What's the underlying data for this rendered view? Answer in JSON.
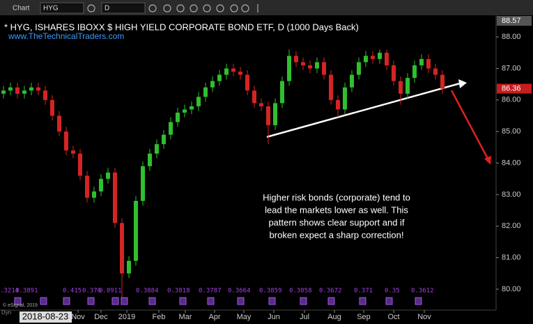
{
  "toolbar": {
    "label": "Chart",
    "symbol": "HYG",
    "interval": "D"
  },
  "chart_data": {
    "type": "candlestick",
    "title": "* HYG, ISHARES IBOXX $ HIGH YIELD CORPORATE BOND ETF, D (1000 Days Back)",
    "subtitle": "www.TheTechnicalTraders.com",
    "annotation": [
      "Higher risk bonds (corporate) tend to",
      "lead the markets lower as well. This",
      "pattern shows clear support and if",
      "broken expect a sharp correction!"
    ],
    "up_color": "#2fbf2f",
    "down_color": "#d42424",
    "candles": {
      "open": [
        86.2,
        86.3,
        86.4,
        86.2,
        86.3,
        86.4,
        86.3,
        86.0,
        85.5,
        85.0,
        84.4,
        84.3,
        83.6,
        82.9,
        83.1,
        83.5,
        83.7,
        82.1,
        80.5,
        80.9,
        82.8,
        83.9,
        84.3,
        84.6,
        84.9,
        85.3,
        85.6,
        85.7,
        85.8,
        86.1,
        86.4,
        86.6,
        86.8,
        87.0,
        86.9,
        86.8,
        86.3,
        85.9,
        85.8,
        85.2,
        85.9,
        86.6,
        87.4,
        87.2,
        87.1,
        87.0,
        87.2,
        86.8,
        86.0,
        85.7,
        86.4,
        86.8,
        87.2,
        87.4,
        87.3,
        87.5,
        87.1,
        86.6,
        86.2,
        86.7,
        87.1,
        87.3,
        87.0,
        86.8
      ],
      "high": [
        86.45,
        86.55,
        86.55,
        86.45,
        86.55,
        86.55,
        86.45,
        86.15,
        85.65,
        85.15,
        84.55,
        84.45,
        83.75,
        83.25,
        83.65,
        83.85,
        83.85,
        82.25,
        81.05,
        82.95,
        84.05,
        84.45,
        84.75,
        85.05,
        85.45,
        85.75,
        85.85,
        85.95,
        86.25,
        86.55,
        86.75,
        86.95,
        87.15,
        87.15,
        87.05,
        86.95,
        86.45,
        86.05,
        85.95,
        86.05,
        86.75,
        87.6,
        87.55,
        87.35,
        87.25,
        87.35,
        87.35,
        86.95,
        86.15,
        86.55,
        86.95,
        87.35,
        87.55,
        87.55,
        87.6,
        87.6,
        87.25,
        86.75,
        86.85,
        87.25,
        87.45,
        87.45,
        87.15,
        86.95
      ],
      "low": [
        86.05,
        86.15,
        86.05,
        86.05,
        86.15,
        86.15,
        85.85,
        85.35,
        84.85,
        84.25,
        84.15,
        83.45,
        82.75,
        82.75,
        82.95,
        83.35,
        81.95,
        79.65,
        80.35,
        80.75,
        82.65,
        83.75,
        84.15,
        84.45,
        84.75,
        85.15,
        85.45,
        85.55,
        85.65,
        85.95,
        86.25,
        86.45,
        86.65,
        86.75,
        86.65,
        86.15,
        85.75,
        85.65,
        84.6,
        85.05,
        85.75,
        86.45,
        87.05,
        86.95,
        86.85,
        86.85,
        86.65,
        85.85,
        85.45,
        85.55,
        86.25,
        86.65,
        87.05,
        87.15,
        87.15,
        86.95,
        86.45,
        85.85,
        86.05,
        86.55,
        86.95,
        86.85,
        86.65,
        86.2
      ],
      "close": [
        86.3,
        86.4,
        86.2,
        86.3,
        86.4,
        86.3,
        86.0,
        85.5,
        85.0,
        84.4,
        84.3,
        83.6,
        82.9,
        83.1,
        83.5,
        83.7,
        82.1,
        80.5,
        80.9,
        82.8,
        83.9,
        84.3,
        84.6,
        84.9,
        85.3,
        85.6,
        85.7,
        85.8,
        86.1,
        86.4,
        86.6,
        86.8,
        87.0,
        86.9,
        86.8,
        86.3,
        85.9,
        85.8,
        85.2,
        85.9,
        86.6,
        87.4,
        87.2,
        87.1,
        87.0,
        87.2,
        86.8,
        86.0,
        85.7,
        86.4,
        86.8,
        87.2,
        87.4,
        87.3,
        87.5,
        87.1,
        86.6,
        86.2,
        86.7,
        87.1,
        87.3,
        87.0,
        86.8,
        86.36
      ]
    },
    "ylim": [
      79.47,
      88.51
    ],
    "yticks": [
      {
        "value": 80,
        "label": "80.00"
      },
      {
        "value": 81,
        "label": "81.00"
      },
      {
        "value": 82,
        "label": "82.00"
      },
      {
        "value": 83,
        "label": "83.00"
      },
      {
        "value": 84,
        "label": "84.00"
      },
      {
        "value": 85,
        "label": "85.00"
      },
      {
        "value": 86,
        "label": "86.00"
      },
      {
        "value": 87,
        "label": "87.00"
      },
      {
        "value": 88,
        "label": "88.00"
      }
    ],
    "xticks": [
      {
        "value": 10.7,
        "label": "Nov"
      },
      {
        "value": 14,
        "label": "Dec"
      },
      {
        "value": 17.7,
        "label": "2019"
      },
      {
        "value": 22.3,
        "label": "Feb"
      },
      {
        "value": 26.1,
        "label": "Mar"
      },
      {
        "value": 30.3,
        "label": "Apr"
      },
      {
        "value": 34.5,
        "label": "May"
      },
      {
        "value": 38.8,
        "label": "Jun"
      },
      {
        "value": 43.2,
        "label": "Jul"
      },
      {
        "value": 47.5,
        "label": "Aug"
      },
      {
        "value": 51.7,
        "label": "Sep"
      },
      {
        "value": 56,
        "label": "Oct"
      },
      {
        "value": 60.4,
        "label": "Nov"
      }
    ],
    "scale_top": {
      "value": 88.57,
      "label": "88.57"
    },
    "last_price": {
      "value": 86.36,
      "label": "86.36"
    },
    "cursor_date": "2018-08-23",
    "indicator_labels": [
      ".3214",
      "0.3891",
      "0.415",
      "0.376",
      "0.0911",
      "0.3884",
      "0.3818",
      "0.3787",
      "0.3664",
      "0.3859",
      "0.3058",
      "0.3672",
      "0.371",
      "0.35",
      "0.3612"
    ],
    "footer": [
      "© eSignal, 2019",
      "Dyn"
    ]
  }
}
